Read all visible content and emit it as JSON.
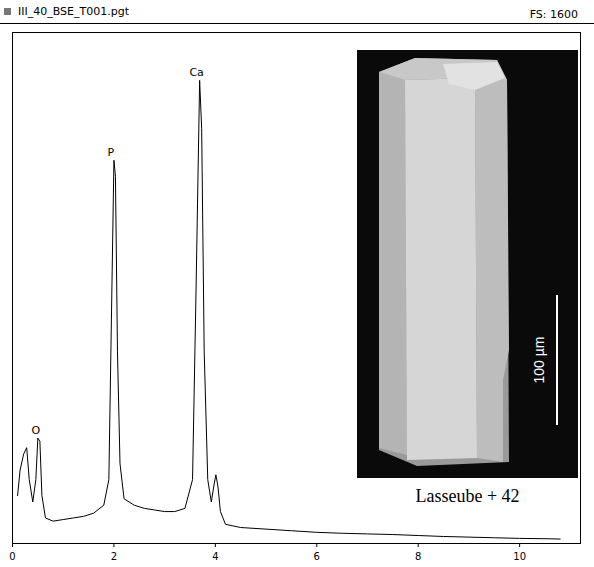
{
  "chart_data": {
    "type": "line",
    "title": "III_40_BSE_T001.pgt",
    "subtitle": "FS: 1600",
    "color": "#000000",
    "x": [
      0.1,
      0.15,
      0.22,
      0.28,
      0.33,
      0.4,
      0.46,
      0.5,
      0.54,
      0.58,
      0.65,
      0.8,
      1.0,
      1.2,
      1.4,
      1.6,
      1.8,
      1.9,
      1.95,
      2.0,
      2.03,
      2.07,
      2.12,
      2.2,
      2.4,
      2.6,
      2.8,
      3.0,
      3.2,
      3.4,
      3.55,
      3.62,
      3.69,
      3.73,
      3.78,
      3.85,
      3.92,
      3.97,
      4.01,
      4.05,
      4.1,
      4.2,
      4.5,
      5.0,
      5.5,
      6.0,
      6.5,
      7.0,
      7.5,
      8.0,
      8.5,
      9.0,
      9.5,
      10.0,
      10.5,
      10.8
    ],
    "values": [
      150,
      230,
      280,
      300,
      200,
      130,
      200,
      330,
      320,
      150,
      80,
      70,
      75,
      80,
      85,
      95,
      120,
      200,
      700,
      1200,
      1150,
      600,
      250,
      140,
      120,
      110,
      105,
      100,
      100,
      110,
      200,
      800,
      1450,
      1300,
      600,
      200,
      130,
      180,
      215,
      180,
      100,
      60,
      50,
      45,
      40,
      35,
      32,
      30,
      28,
      25,
      22,
      20,
      18,
      16,
      15,
      14
    ],
    "annotations": [
      {
        "text": "O",
        "x": 0.52,
        "y": 330
      },
      {
        "text": "P",
        "x": 2.0,
        "y": 1200
      },
      {
        "text": "Ca",
        "x": 3.69,
        "y": 1450
      }
    ],
    "xlim": [
      0,
      11.2
    ],
    "xticks": [
      0,
      2,
      4,
      6,
      8,
      10
    ],
    "ylim": [
      0,
      1600
    ],
    "yticks": [],
    "tick_labels": "x",
    "grid": false,
    "inset": {
      "scale_bar_label": "100 µm",
      "caption": "Lasseube + 42"
    }
  }
}
